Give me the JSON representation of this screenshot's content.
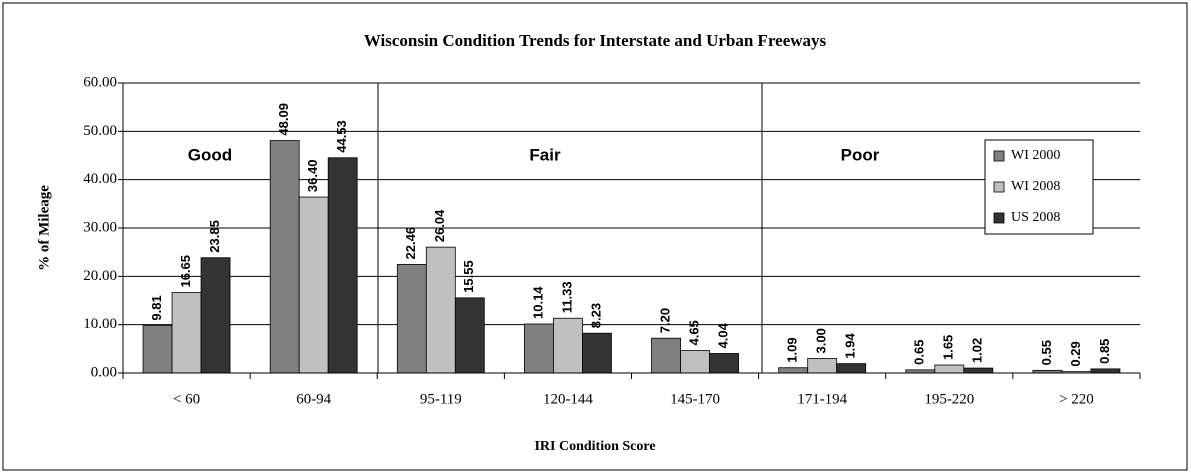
{
  "chart_data": {
    "type": "bar",
    "title": "Wisconsin Condition Trends for Interstate and Urban Freeways",
    "x_label": "IRI Condition Score",
    "y_label": "% of Mileage",
    "categories": [
      "< 60",
      "60-94",
      "95-119",
      "120-144",
      "145-170",
      "171-194",
      "195-220",
      "> 220"
    ],
    "series": [
      {
        "name": "WI 2000",
        "color": "#808080",
        "values": [
          9.81,
          48.09,
          22.46,
          10.14,
          7.2,
          1.09,
          0.65,
          0.55
        ],
        "value_labels": [
          "9.81",
          "48.09",
          "22.46",
          "10.14",
          "7.20",
          "1.09",
          "0.65",
          "0.55"
        ]
      },
      {
        "name": "WI 2008",
        "color": "#c0c0c0",
        "values": [
          16.65,
          36.4,
          26.04,
          11.33,
          4.65,
          3.0,
          1.65,
          0.29
        ],
        "value_labels": [
          "16.65",
          "36.40",
          "26.04",
          "11.33",
          "4.65",
          "3.00",
          "1.65",
          "0.29"
        ]
      },
      {
        "name": "US 2008",
        "color": "#333333",
        "values": [
          23.85,
          44.53,
          15.55,
          8.23,
          4.04,
          1.94,
          1.02,
          0.85
        ],
        "value_labels": [
          "23.85",
          "44.53",
          "15.55",
          "8.23",
          "4.04",
          "1.94",
          "1.02",
          "0.85"
        ]
      }
    ],
    "annotations": [
      "Good",
      "Fair",
      "Poor"
    ],
    "ylim": [
      0,
      60
    ],
    "yticks": [
      {
        "value": 0,
        "label": "0.00"
      },
      {
        "value": 10,
        "label": "10.00"
      },
      {
        "value": 20,
        "label": "20.00"
      },
      {
        "value": 30,
        "label": "30.00"
      },
      {
        "value": 40,
        "label": "40.00"
      },
      {
        "value": 50,
        "label": "50.00"
      },
      {
        "value": 60,
        "label": "60.00"
      }
    ],
    "grid": true,
    "legend": "right"
  }
}
